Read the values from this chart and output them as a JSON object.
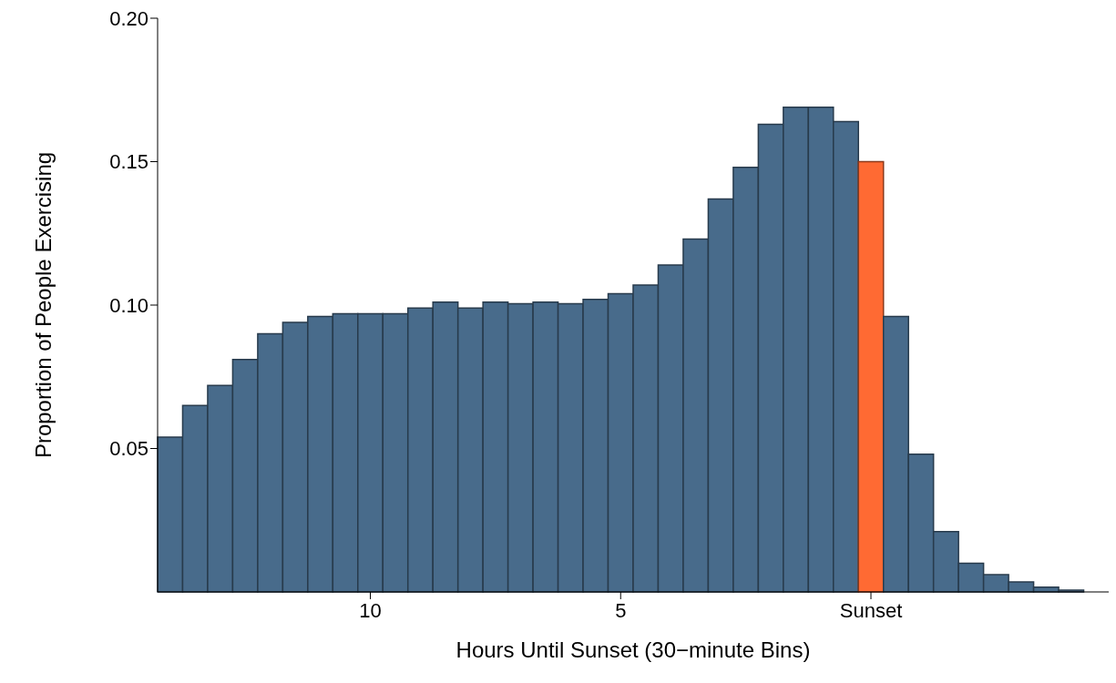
{
  "chart_data": {
    "type": "histogram",
    "xlabel": "Hours Until Sunset (30−minute Bins)",
    "ylabel": "Proportion of People Exercising",
    "bins": [
      14.25,
      13.75,
      13.25,
      12.75,
      12.25,
      11.75,
      11.25,
      10.75,
      10.25,
      9.75,
      9.25,
      8.75,
      8.25,
      7.75,
      7.25,
      6.75,
      6.25,
      5.75,
      5.25,
      4.75,
      4.25,
      3.75,
      3.25,
      2.75,
      2.25,
      1.75,
      1.25,
      0.75,
      0.25,
      -0.25,
      -0.75,
      -1.25,
      -1.75,
      -2.25,
      -2.75,
      -3.25,
      -3.75,
      -4.25
    ],
    "values": [
      0.054,
      0.065,
      0.072,
      0.081,
      0.09,
      0.094,
      0.096,
      0.097,
      0.097,
      0.097,
      0.099,
      0.101,
      0.099,
      0.101,
      0.1005,
      0.101,
      0.1005,
      0.102,
      0.104,
      0.107,
      0.114,
      0.123,
      0.137,
      0.148,
      0.163,
      0.169,
      0.169,
      0.164,
      0.15,
      0.096,
      0.048,
      0.021,
      0.01,
      0.006,
      0.0035,
      0.0017,
      0.0006
    ],
    "colors": [
      "#486b8b",
      "#486b8b",
      "#486b8b",
      "#486b8b",
      "#486b8b",
      "#486b8b",
      "#486b8b",
      "#486b8b",
      "#486b8b",
      "#486b8b",
      "#486b8b",
      "#486b8b",
      "#486b8b",
      "#486b8b",
      "#486b8b",
      "#486b8b",
      "#486b8b",
      "#486b8b",
      "#486b8b",
      "#486b8b",
      "#486b8b",
      "#486b8b",
      "#486b8b",
      "#486b8b",
      "#486b8b",
      "#486b8b",
      "#486b8b",
      "#486b8b",
      "#ff6a33",
      "#486b8b",
      "#486b8b",
      "#486b8b",
      "#486b8b",
      "#486b8b",
      "#486b8b",
      "#486b8b",
      "#486b8b"
    ],
    "xlim": [
      14.25,
      -4.75
    ],
    "xticks": [
      10,
      5,
      {
        "value": 0,
        "label": "Sunset"
      }
    ],
    "ylim": [
      0,
      0.2
    ],
    "yticks": [
      0.05,
      {
        "value": 0.1,
        "label": "0.10"
      },
      0.15,
      {
        "value": 0.2,
        "label": "0.20"
      }
    ],
    "grid": false
  }
}
